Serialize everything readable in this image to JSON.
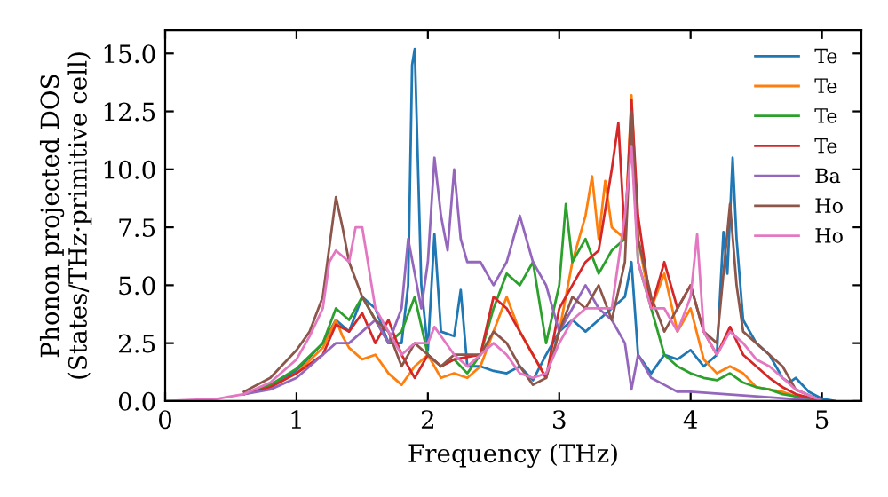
{
  "chart_data": {
    "type": "line",
    "xlabel": "Frequency (THz)",
    "ylabel": "Phonon projected DOS\n(States/THz·primitive cell)",
    "xlim": [
      0,
      5.3
    ],
    "ylim": [
      0,
      16
    ],
    "xticks": [
      0,
      1,
      2,
      3,
      4,
      5
    ],
    "yticks": [
      {
        "value": 0,
        "label": "0.0"
      },
      2.5,
      {
        "value": 5,
        "label": "5.0"
      },
      7.5,
      {
        "value": 10,
        "label": "10.0"
      },
      12.5,
      {
        "value": 15,
        "label": "15.0"
      }
    ],
    "grid": false,
    "legend": "top right",
    "marker": "none",
    "line_style": "solid",
    "series": [
      {
        "name": "Te",
        "color": "#1f77b4",
        "x": [
          0.6,
          0.8,
          1.0,
          1.2,
          1.3,
          1.4,
          1.5,
          1.6,
          1.7,
          1.8,
          1.85,
          1.88,
          1.9,
          1.95,
          2.0,
          2.05,
          2.1,
          2.2,
          2.25,
          2.3,
          2.4,
          2.5,
          2.6,
          2.7,
          2.8,
          2.9,
          3.0,
          3.1,
          3.2,
          3.3,
          3.4,
          3.5,
          3.55,
          3.6,
          3.7,
          3.8,
          3.9,
          4.0,
          4.1,
          4.2,
          4.25,
          4.28,
          4.32,
          4.35,
          4.4,
          4.5,
          4.6,
          4.7,
          4.75,
          4.8,
          4.9,
          5.0,
          5.1
        ],
        "values": [
          0.3,
          0.7,
          1.3,
          2.5,
          3.5,
          3,
          4.5,
          4,
          2.5,
          2.5,
          5,
          14.5,
          15.2,
          5,
          2.2,
          7.2,
          3,
          2.8,
          4.8,
          1.5,
          1.5,
          1.3,
          1.2,
          1.5,
          0.9,
          2,
          3,
          3.5,
          3,
          3.5,
          4,
          4.5,
          6,
          2,
          1.2,
          2,
          1.8,
          2.2,
          1.5,
          2,
          7.3,
          5.5,
          10.5,
          7,
          3.5,
          2.5,
          2,
          1,
          0.8,
          1,
          0.4,
          0.1,
          0
        ]
      },
      {
        "name": "Te",
        "color": "#ff7f0e",
        "x": [
          0.6,
          0.8,
          1.0,
          1.2,
          1.3,
          1.35,
          1.4,
          1.5,
          1.6,
          1.7,
          1.8,
          1.9,
          2.0,
          2.1,
          2.2,
          2.3,
          2.4,
          2.5,
          2.6,
          2.7,
          2.8,
          2.9,
          3.0,
          3.1,
          3.2,
          3.25,
          3.3,
          3.35,
          3.4,
          3.5,
          3.55,
          3.6,
          3.7,
          3.8,
          3.9,
          4.0,
          4.1,
          4.2,
          4.3,
          4.4,
          4.5,
          4.6,
          4.7,
          4.8
        ],
        "values": [
          0.3,
          0.6,
          1.2,
          2.3,
          3.5,
          2.8,
          2.3,
          1.8,
          2,
          1.2,
          0.7,
          1.5,
          2,
          1,
          1.2,
          1,
          1.5,
          3,
          4.5,
          3,
          2,
          1,
          3,
          6,
          8,
          9.7,
          7,
          9.5,
          7.5,
          7,
          13.2,
          7,
          4,
          5.5,
          3,
          4,
          1.8,
          1.2,
          1.5,
          1.2,
          0.6,
          0.5,
          0.4,
          0.2
        ]
      },
      {
        "name": "Te",
        "color": "#2ca02c",
        "x": [
          0.6,
          0.8,
          1.0,
          1.2,
          1.3,
          1.4,
          1.5,
          1.6,
          1.7,
          1.8,
          1.9,
          2.0,
          2.1,
          2.2,
          2.3,
          2.4,
          2.5,
          2.6,
          2.7,
          2.8,
          2.9,
          3.0,
          3.05,
          3.1,
          3.2,
          3.3,
          3.4,
          3.5,
          3.55,
          3.6,
          3.7,
          3.8,
          3.9,
          4.0,
          4.1,
          4.2,
          4.3,
          4.4,
          4.5,
          4.6,
          4.7,
          4.8,
          5.0
        ],
        "values": [
          0.3,
          0.7,
          1.4,
          2.5,
          4,
          3.5,
          4.5,
          3.5,
          2.5,
          3,
          4.5,
          2,
          1.5,
          1.8,
          1.2,
          2,
          4,
          5.5,
          5,
          6,
          2.5,
          5,
          8.5,
          6,
          7,
          5.5,
          6.5,
          7,
          12,
          6,
          4,
          2,
          1.5,
          1.2,
          1,
          0.9,
          1.2,
          0.8,
          0.6,
          0.5,
          0.3,
          0.2,
          0
        ]
      },
      {
        "name": "Te",
        "color": "#d62728",
        "x": [
          0.6,
          0.8,
          1.0,
          1.2,
          1.3,
          1.4,
          1.5,
          1.6,
          1.7,
          1.8,
          1.9,
          2.0,
          2.1,
          2.2,
          2.4,
          2.5,
          2.6,
          2.7,
          2.8,
          2.9,
          3.0,
          3.1,
          3.2,
          3.3,
          3.4,
          3.45,
          3.5,
          3.55,
          3.6,
          3.7,
          3.8,
          3.9,
          4.0,
          4.1,
          4.2,
          4.3,
          4.4,
          4.5,
          4.6,
          4.7,
          4.8,
          5.0
        ],
        "values": [
          0.3,
          0.6,
          1.2,
          2,
          3.3,
          3,
          3.8,
          2.5,
          3.5,
          2,
          1,
          2,
          1.5,
          1.8,
          2,
          4.5,
          4,
          3,
          2,
          1,
          4,
          5,
          6,
          6.5,
          10,
          12,
          7,
          13,
          8,
          4,
          6,
          4,
          5,
          3,
          2,
          3.2,
          2,
          1.5,
          1,
          0.6,
          0.3,
          0
        ]
      },
      {
        "name": "Ba",
        "color": "#9467bd",
        "x": [
          0.6,
          0.8,
          1.0,
          1.2,
          1.3,
          1.4,
          1.5,
          1.6,
          1.7,
          1.8,
          1.85,
          1.9,
          1.95,
          2.0,
          2.05,
          2.1,
          2.15,
          2.2,
          2.25,
          2.3,
          2.4,
          2.5,
          2.6,
          2.7,
          2.8,
          2.9,
          3.0,
          3.1,
          3.2,
          3.3,
          3.4,
          3.5,
          3.55,
          3.6,
          3.7,
          3.8,
          3.9,
          4.0,
          4.5,
          5.0
        ],
        "values": [
          0.3,
          0.5,
          1,
          2,
          2.5,
          2.5,
          3,
          3.5,
          2.5,
          4,
          7,
          5.5,
          4,
          6,
          10.5,
          8,
          6.5,
          10,
          7,
          6,
          6,
          5,
          6,
          8,
          6,
          5,
          3,
          4,
          5,
          4,
          3.5,
          2.5,
          0.5,
          2,
          1,
          0.7,
          0.4,
          0.4,
          0.2,
          0
        ]
      },
      {
        "name": "Ho",
        "color": "#8c564b",
        "x": [
          0.6,
          0.8,
          1.0,
          1.1,
          1.2,
          1.3,
          1.35,
          1.4,
          1.5,
          1.6,
          1.7,
          1.8,
          1.9,
          2.0,
          2.1,
          2.2,
          2.4,
          2.5,
          2.6,
          2.7,
          2.8,
          2.9,
          3.0,
          3.1,
          3.2,
          3.3,
          3.4,
          3.5,
          3.55,
          3.6,
          3.7,
          3.8,
          3.9,
          4.0,
          4.1,
          4.2,
          4.3,
          4.35,
          4.4,
          4.5,
          4.6,
          4.7,
          4.8,
          5.0
        ],
        "values": [
          0.4,
          1,
          2.2,
          3,
          4.5,
          8.8,
          7.5,
          6,
          4.5,
          3.5,
          3,
          1.5,
          2.5,
          2,
          1.5,
          2,
          2,
          3,
          2.5,
          1.5,
          0.7,
          1,
          3,
          4.5,
          4,
          5,
          3.5,
          6,
          12.5,
          7,
          4.5,
          3,
          4,
          5,
          3,
          2.5,
          8.5,
          5,
          3,
          2.5,
          2,
          1.5,
          0.5,
          0
        ]
      },
      {
        "name": "Ho",
        "color": "#e377c2",
        "x": [
          0,
          0.4,
          0.6,
          0.8,
          1.0,
          1.1,
          1.2,
          1.25,
          1.3,
          1.4,
          1.45,
          1.5,
          1.6,
          1.7,
          1.8,
          1.9,
          2.0,
          2.05,
          2.1,
          2.2,
          2.3,
          2.4,
          2.5,
          2.6,
          2.7,
          2.8,
          2.9,
          3.0,
          3.1,
          3.2,
          3.3,
          3.4,
          3.5,
          3.55,
          3.6,
          3.7,
          3.8,
          3.9,
          4.0,
          4.05,
          4.1,
          4.2,
          4.3,
          4.4,
          4.5,
          4.6,
          4.7,
          4.8,
          5.0
        ],
        "values": [
          0,
          0.1,
          0.3,
          0.8,
          1.8,
          2.8,
          4,
          6,
          6.5,
          6,
          7.5,
          7.5,
          4,
          3,
          2,
          2.5,
          2.5,
          3.2,
          2.8,
          2,
          1.5,
          2,
          2.5,
          2,
          1.2,
          1,
          1.2,
          2.5,
          3.5,
          4,
          4,
          4,
          8,
          11,
          6,
          4,
          4,
          3,
          4.5,
          7.2,
          3,
          2,
          3,
          2.5,
          1.8,
          1.5,
          1,
          0.5,
          0
        ]
      }
    ]
  }
}
